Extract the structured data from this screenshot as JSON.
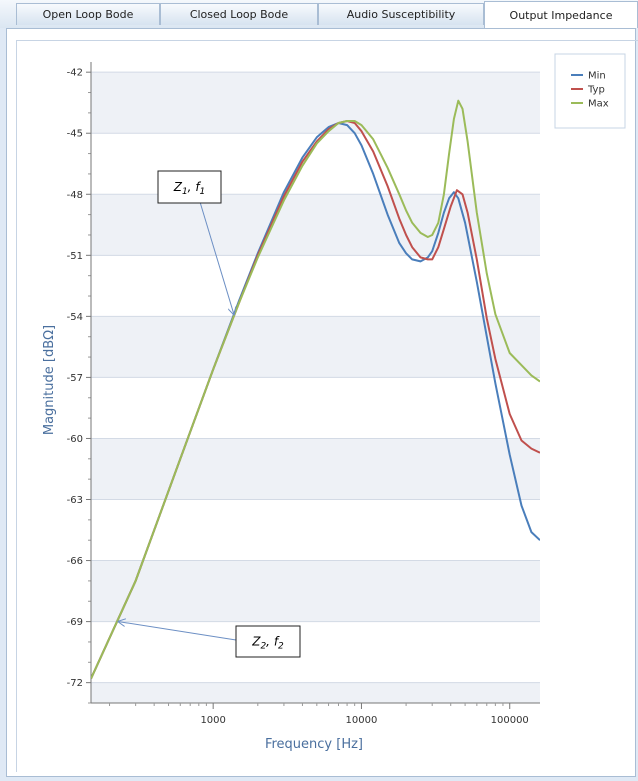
{
  "tabs": [
    {
      "label": "Open Loop Bode",
      "active": false
    },
    {
      "label": "Closed Loop Bode",
      "active": false
    },
    {
      "label": "Audio Susceptibility",
      "active": false
    },
    {
      "label": "Output Impedance",
      "active": true
    }
  ],
  "chart_data": {
    "type": "line",
    "xlabel": "Frequency [Hz]",
    "ylabel": "Magnitude [dBΩ]",
    "xscale": "log",
    "xlim": [
      150,
      160000
    ],
    "ylim": [
      -73,
      -41.5
    ],
    "x_ticks": [
      1000,
      10000,
      100000
    ],
    "x_tick_labels": [
      "1000",
      "10000",
      "100000"
    ],
    "y_ticks": [
      -42,
      -45,
      -48,
      -51,
      -54,
      -57,
      -60,
      -63,
      -66,
      -69,
      -72
    ],
    "grid": "alternating horizontal bands",
    "legend_position": "top-right",
    "series": [
      {
        "name": "Min",
        "color": "#4a7ebb",
        "x": [
          150,
          300,
          600,
          1000,
          1500,
          2000,
          3000,
          4000,
          5000,
          6000,
          7000,
          8000,
          9000,
          10000,
          12000,
          15000,
          18000,
          20000,
          22000,
          25000,
          28000,
          30000,
          33000,
          36000,
          39000,
          42000,
          45000,
          50000,
          60000,
          70000,
          80000,
          100000,
          120000,
          140000,
          160000
        ],
        "values": [
          -71.8,
          -67.0,
          -61.0,
          -56.6,
          -53.2,
          -50.9,
          -47.9,
          -46.2,
          -45.2,
          -44.7,
          -44.5,
          -44.6,
          -45.0,
          -45.6,
          -47.0,
          -49.0,
          -50.4,
          -50.9,
          -51.2,
          -51.3,
          -51.1,
          -50.8,
          -49.9,
          -48.9,
          -48.2,
          -47.9,
          -48.2,
          -49.4,
          -52.3,
          -55.0,
          -57.3,
          -60.8,
          -63.3,
          -64.6,
          -65.0
        ]
      },
      {
        "name": "Typ",
        "color": "#c0504d",
        "x": [
          150,
          300,
          600,
          1000,
          1500,
          2000,
          3000,
          4000,
          5000,
          6000,
          7000,
          8000,
          9000,
          10000,
          12000,
          15000,
          18000,
          20000,
          22000,
          25000,
          28000,
          30000,
          33000,
          36000,
          40000,
          44000,
          48000,
          52000,
          60000,
          70000,
          80000,
          100000,
          120000,
          140000,
          160000
        ],
        "values": [
          -71.8,
          -67.0,
          -61.0,
          -56.6,
          -53.3,
          -51.0,
          -48.1,
          -46.4,
          -45.4,
          -44.8,
          -44.5,
          -44.4,
          -44.5,
          -44.9,
          -45.9,
          -47.6,
          -49.2,
          -50.0,
          -50.6,
          -51.1,
          -51.2,
          -51.2,
          -50.6,
          -49.7,
          -48.6,
          -47.8,
          -48.0,
          -48.9,
          -51.2,
          -54.1,
          -56.1,
          -58.8,
          -60.1,
          -60.5,
          -60.7
        ]
      },
      {
        "name": "Max",
        "color": "#9bbb59",
        "x": [
          150,
          300,
          600,
          1000,
          1500,
          2000,
          3000,
          4000,
          5000,
          6000,
          7000,
          8000,
          9000,
          10000,
          12000,
          15000,
          18000,
          20000,
          22000,
          25000,
          28000,
          30000,
          33000,
          36000,
          39000,
          42000,
          45000,
          48000,
          52000,
          60000,
          70000,
          80000,
          100000,
          120000,
          140000,
          160000
        ],
        "values": [
          -71.8,
          -67.0,
          -61.0,
          -56.6,
          -53.3,
          -51.1,
          -48.3,
          -46.6,
          -45.5,
          -44.9,
          -44.5,
          -44.4,
          -44.4,
          -44.6,
          -45.3,
          -46.7,
          -48.0,
          -48.8,
          -49.4,
          -49.9,
          -50.1,
          -50.0,
          -49.4,
          -48.0,
          -46.0,
          -44.3,
          -43.4,
          -43.8,
          -45.4,
          -48.9,
          -51.9,
          -53.9,
          -55.8,
          -56.4,
          -56.9,
          -57.2
        ]
      }
    ],
    "annotations": [
      {
        "base": "Z",
        "sub1": "1",
        "mid": ", ",
        "base2": "f",
        "sub2": "1",
        "target_x": 1380,
        "target_y": -53.9
      },
      {
        "base": "Z",
        "sub1": "2",
        "mid": ", ",
        "base2": "f",
        "sub2": "2",
        "target_x": 230,
        "target_y": -69.0
      }
    ]
  }
}
